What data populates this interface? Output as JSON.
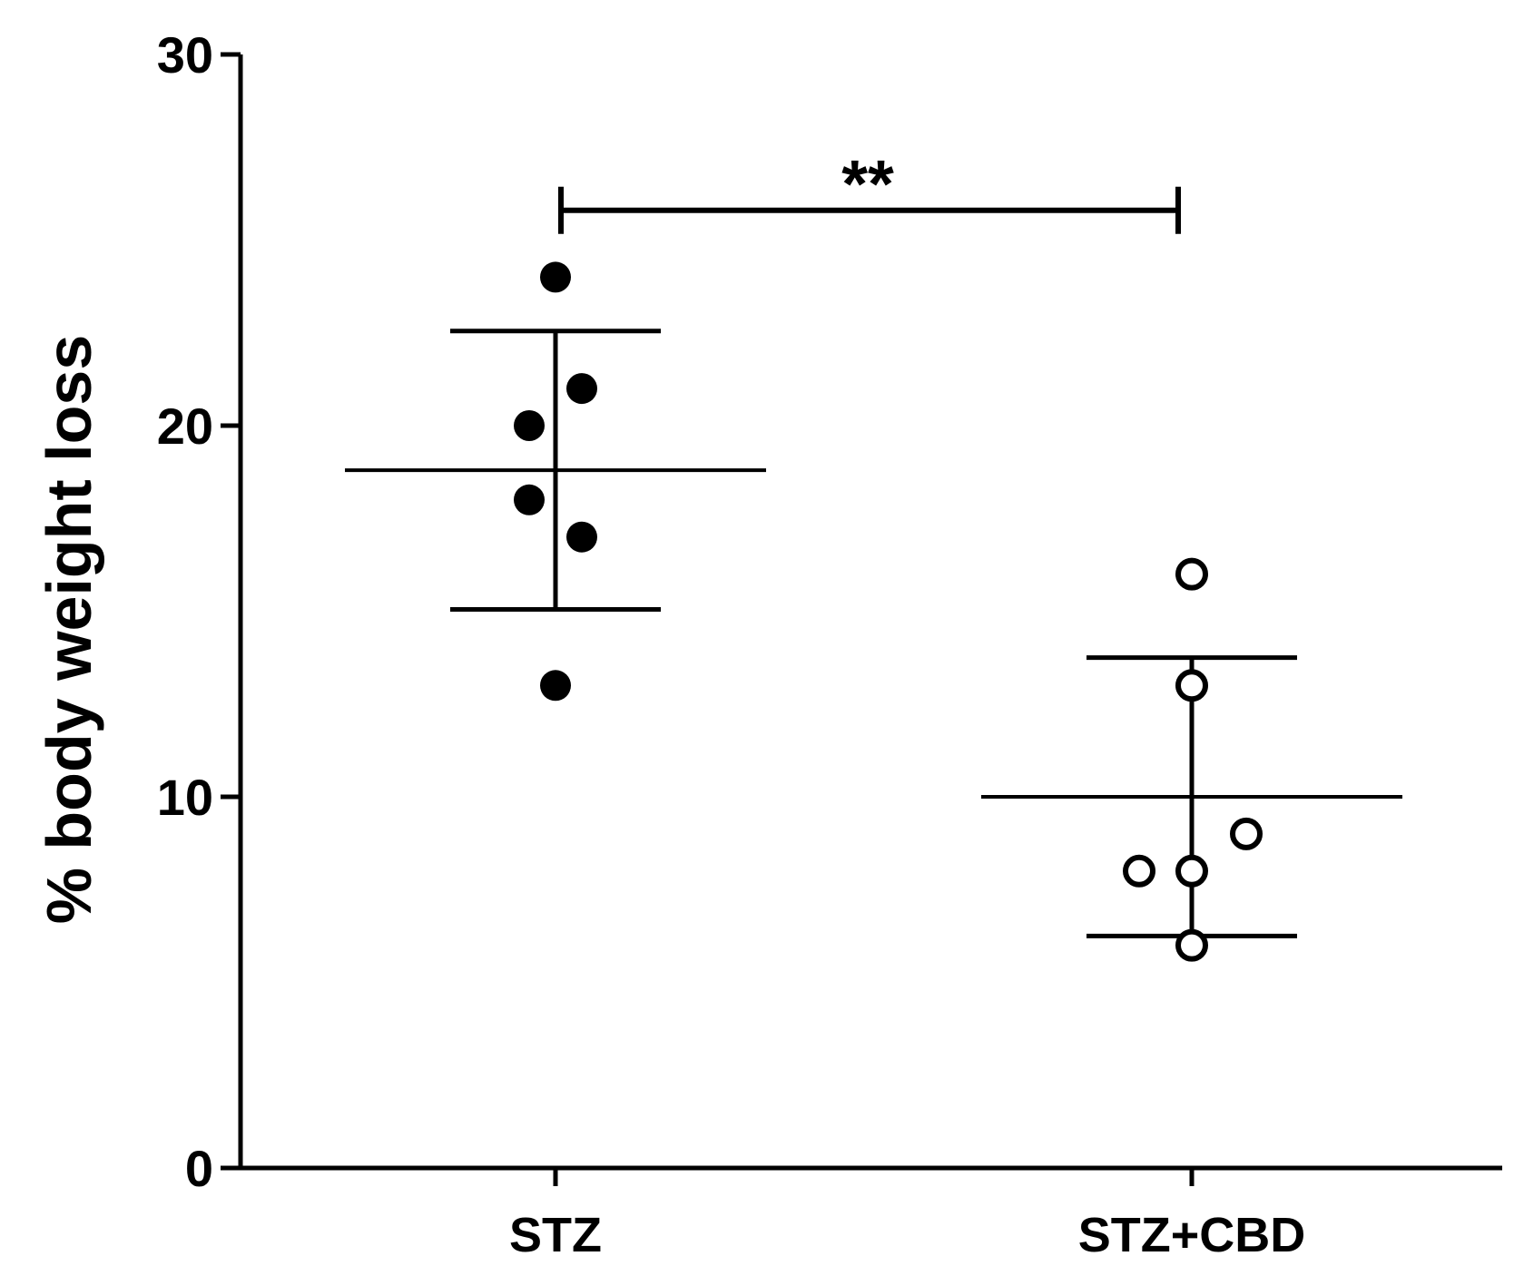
{
  "chart_data": {
    "type": "scatter",
    "ylabel": "% body weight loss",
    "xlabel": "",
    "ylim": [
      0,
      30
    ],
    "yticks": [
      0,
      10,
      20,
      30
    ],
    "grid": false,
    "categories": [
      "STZ",
      "STZ+CBD"
    ],
    "groups": [
      {
        "category": "STZ",
        "marker": "filled-circle",
        "points": [
          24,
          21,
          20,
          18,
          17,
          13
        ],
        "mean": 18.8,
        "sd": 3.75
      },
      {
        "category": "STZ+CBD",
        "marker": "open-circle",
        "points": [
          16,
          13,
          9,
          8,
          8,
          6
        ],
        "mean": 10,
        "sd": 3.75
      }
    ],
    "significance": {
      "from": "STZ",
      "to": "STZ+CBD",
      "label": "**",
      "y": 25.8
    },
    "colors": {
      "axis": "#000000",
      "marker": "#000000",
      "background": "#ffffff"
    }
  }
}
